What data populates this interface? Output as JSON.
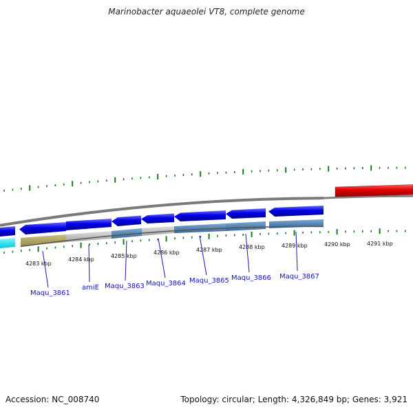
{
  "title": "Marinobacter aquaeolei VT8, complete genome",
  "footer": {
    "accession": "Accession: NC_008740",
    "topology": "Topology: circular; Length: 4,326,849 bp; Genes: 3,921"
  },
  "colors": {
    "forward_gene": "#e00000",
    "reverse_gene": "#0000e6",
    "cog_steel": "#4a7fb0",
    "cog_grey": "#b8b8b8",
    "cog_khaki": "#b0a860",
    "cog_cyan": "#00e0f0",
    "tick": "#1a7a1a",
    "gene_label": "#1414b4",
    "backbone": "#808080"
  },
  "scale": {
    "unit": "kbp",
    "ticks": [
      "4283 kbp",
      "4284 kbp",
      "4285 kbp",
      "4286 kbp",
      "4287 kbp",
      "4288 kbp",
      "4289 kbp",
      "4290 kbp",
      "4291 kbp"
    ]
  },
  "gene_labels": [
    "Maqu_3861",
    "amiE",
    "Maqu_3863",
    "Maqu_3864",
    "Maqu_3865",
    "Maqu_3866",
    "Maqu_3867"
  ],
  "genes": [
    {
      "strand": "reverse",
      "cog_color": "cyan"
    },
    {
      "strand": "reverse",
      "cog_color": "khaki"
    },
    {
      "strand": "reverse",
      "cog_color": "grey"
    },
    {
      "strand": "reverse",
      "cog_color": "steel"
    },
    {
      "strand": "reverse",
      "cog_color": "grey"
    },
    {
      "strand": "reverse",
      "cog_color": "steel"
    },
    {
      "strand": "reverse",
      "cog_color": "steel"
    },
    {
      "strand": "reverse",
      "cog_color": "steel"
    },
    {
      "strand": "forward",
      "cog_color": "none"
    }
  ]
}
